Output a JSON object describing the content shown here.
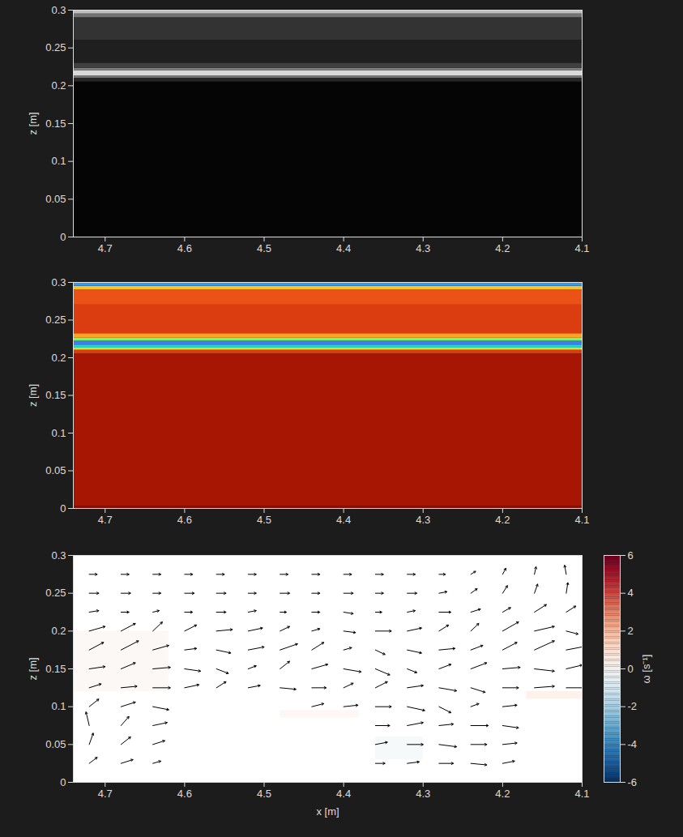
{
  "chart_data": [
    {
      "type": "heatmap",
      "color": "gray",
      "ylabel": "z [m]",
      "xlim": [
        4.74,
        4.1
      ],
      "xticks": [
        4.7,
        4.6,
        4.5,
        4.4,
        4.3,
        4.2,
        4.1
      ],
      "ylim": [
        0,
        0.3
      ],
      "yticks": [
        0,
        0.05,
        0.1,
        0.15,
        0.2,
        0.25,
        0.3
      ],
      "clim": [
        0,
        1
      ],
      "bands": [
        {
          "z": [
            0,
            0.205
          ],
          "value": 0.02
        },
        {
          "z": [
            0.205,
            0.21
          ],
          "value": 0.15
        },
        {
          "z": [
            0.21,
            0.213
          ],
          "value": 0.45
        },
        {
          "z": [
            0.213,
            0.22
          ],
          "value": 0.85
        },
        {
          "z": [
            0.22,
            0.223
          ],
          "value": 0.5
        },
        {
          "z": [
            0.223,
            0.23
          ],
          "value": 0.25
        },
        {
          "z": [
            0.23,
            0.26
          ],
          "value": 0.12
        },
        {
          "z": [
            0.26,
            0.29
          ],
          "value": 0.2
        },
        {
          "z": [
            0.29,
            0.295
          ],
          "value": 0.45
        },
        {
          "z": [
            0.295,
            0.3
          ],
          "value": 0.75
        }
      ]
    },
    {
      "type": "heatmap",
      "color": "jet",
      "ylabel": "z [m]",
      "xlim": [
        4.74,
        4.1
      ],
      "xticks": [
        4.7,
        4.6,
        4.5,
        4.4,
        4.3,
        4.2,
        4.1
      ],
      "ylim": [
        0,
        0.3
      ],
      "yticks": [
        0,
        0.05,
        0.1,
        0.15,
        0.2,
        0.25,
        0.3
      ],
      "clim": [
        0,
        1
      ],
      "bands": [
        {
          "z": [
            0,
            0.003
          ],
          "value": 0.97
        },
        {
          "z": [
            0.003,
            0.205
          ],
          "value": 0.93
        },
        {
          "z": [
            0.205,
            0.21
          ],
          "value": 0.85
        },
        {
          "z": [
            0.21,
            0.213
          ],
          "value": 0.6
        },
        {
          "z": [
            0.213,
            0.217
          ],
          "value": 0.3
        },
        {
          "z": [
            0.217,
            0.222
          ],
          "value": 0.15
        },
        {
          "z": [
            0.222,
            0.226
          ],
          "value": 0.45
        },
        {
          "z": [
            0.226,
            0.232
          ],
          "value": 0.7
        },
        {
          "z": [
            0.232,
            0.27
          ],
          "value": 0.85
        },
        {
          "z": [
            0.27,
            0.29
          ],
          "value": 0.82
        },
        {
          "z": [
            0.29,
            0.295
          ],
          "value": 0.65
        },
        {
          "z": [
            0.295,
            0.3
          ],
          "value": 0.2
        }
      ]
    },
    {
      "type": "quiver",
      "xlabel": "x [m]",
      "ylabel": "z [m]",
      "xlim": [
        4.74,
        4.1
      ],
      "xticks": [
        4.7,
        4.6,
        4.5,
        4.4,
        4.3,
        4.2,
        4.1
      ],
      "ylim": [
        0,
        0.3
      ],
      "yticks": [
        0,
        0.05,
        0.1,
        0.15,
        0.2,
        0.25,
        0.3
      ],
      "vectors": {
        "x": [
          4.72,
          4.68,
          4.64,
          4.6,
          4.56,
          4.52,
          4.48,
          4.44,
          4.4,
          4.36,
          4.32,
          4.28,
          4.24,
          4.2,
          4.16,
          4.12
        ],
        "z": [
          0.025,
          0.05,
          0.075,
          0.1,
          0.125,
          0.15,
          0.175,
          0.2,
          0.225,
          0.25,
          0.275
        ],
        "u": [
          [
            -0.01,
            -0.015,
            -0.01,
            null,
            null,
            null,
            null,
            null,
            null,
            -0.012,
            -0.015,
            -0.018,
            -0.02,
            -0.015,
            null,
            null
          ],
          [
            -0.005,
            -0.012,
            -0.015,
            null,
            null,
            null,
            null,
            null,
            null,
            -0.015,
            -0.02,
            -0.022,
            -0.02,
            -0.018,
            null,
            null
          ],
          [
            0.004,
            -0.01,
            -0.018,
            null,
            null,
            null,
            null,
            null,
            null,
            -0.018,
            -0.02,
            -0.018,
            -0.022,
            -0.02,
            null,
            null
          ],
          [
            -0.012,
            -0.018,
            -0.02,
            null,
            null,
            null,
            null,
            -0.015,
            -0.018,
            -0.02,
            -0.022,
            -0.015,
            -0.01,
            -0.018,
            null,
            null
          ],
          [
            -0.015,
            -0.02,
            -0.022,
            -0.018,
            -0.012,
            -0.015,
            -0.02,
            -0.018,
            -0.012,
            -0.015,
            -0.02,
            -0.022,
            -0.018,
            -0.02,
            -0.025,
            -0.028
          ],
          [
            -0.02,
            -0.018,
            -0.022,
            -0.02,
            -0.015,
            -0.01,
            -0.012,
            -0.02,
            -0.022,
            -0.018,
            -0.012,
            -0.015,
            -0.02,
            -0.022,
            -0.025,
            -0.02
          ],
          [
            -0.018,
            -0.022,
            -0.02,
            -0.015,
            -0.018,
            -0.02,
            -0.022,
            -0.015,
            -0.01,
            -0.012,
            -0.018,
            -0.02,
            -0.015,
            -0.018,
            -0.025,
            -0.03
          ],
          [
            -0.02,
            -0.018,
            -0.012,
            -0.015,
            -0.02,
            -0.018,
            -0.012,
            -0.01,
            -0.015,
            -0.02,
            -0.018,
            -0.012,
            -0.01,
            -0.02,
            -0.025,
            -0.015
          ],
          [
            -0.012,
            -0.01,
            -0.008,
            -0.01,
            -0.012,
            -0.01,
            -0.008,
            -0.01,
            -0.012,
            -0.008,
            -0.01,
            -0.015,
            -0.012,
            -0.01,
            -0.015,
            -0.012
          ],
          [
            -0.012,
            -0.012,
            -0.01,
            -0.012,
            -0.012,
            -0.01,
            -0.012,
            -0.01,
            -0.012,
            -0.01,
            -0.012,
            -0.01,
            -0.008,
            -0.006,
            -0.004,
            -0.002
          ],
          [
            -0.01,
            -0.01,
            -0.01,
            -0.01,
            -0.01,
            -0.01,
            -0.01,
            -0.01,
            -0.01,
            -0.01,
            -0.01,
            -0.008,
            -0.006,
            -0.004,
            -0.002,
            0.002
          ]
        ],
        "w": [
          [
            0.008,
            0.005,
            0.003,
            null,
            null,
            null,
            null,
            null,
            null,
            0,
            0.002,
            0,
            -0.002,
            0.003,
            null,
            null
          ],
          [
            0.015,
            0.01,
            0.005,
            null,
            null,
            null,
            null,
            null,
            null,
            0.003,
            0,
            -0.003,
            0,
            0.002,
            null,
            null
          ],
          [
            0.018,
            0.012,
            0.004,
            null,
            null,
            null,
            null,
            null,
            null,
            0,
            0.004,
            0.002,
            0,
            -0.003,
            null,
            null
          ],
          [
            0.01,
            0.006,
            -0.004,
            null,
            null,
            null,
            null,
            0.004,
            0.002,
            0,
            -0.005,
            -0.008,
            0.004,
            0.002,
            null,
            null
          ],
          [
            0.005,
            0.002,
            0,
            0.004,
            0.008,
            0.003,
            -0.002,
            0,
            0.006,
            0.008,
            0.003,
            -0.004,
            -0.006,
            0,
            0.002,
            0
          ],
          [
            0.003,
            0.008,
            0.002,
            -0.003,
            -0.006,
            0.004,
            0.01,
            0.006,
            -0.004,
            -0.008,
            -0.005,
            0.006,
            0.008,
            0.002,
            -0.003,
            0.005
          ],
          [
            0.01,
            0.012,
            0.006,
            0.002,
            -0.004,
            0.004,
            0.008,
            0.01,
            0.003,
            -0.006,
            -0.004,
            0.002,
            0.006,
            0.01,
            0.012,
            0.006
          ],
          [
            0.006,
            0.01,
            0.012,
            0.008,
            0.002,
            0.004,
            0.006,
            0.003,
            -0.002,
            0,
            0.004,
            0.008,
            0.01,
            0.012,
            0.006,
            -0.004
          ],
          [
            0.002,
            0,
            0.002,
            0,
            0,
            0.002,
            0,
            0,
            -0.002,
            0,
            0.002,
            0,
            0.004,
            0.006,
            0.01,
            0.008
          ],
          [
            0,
            0,
            0,
            0,
            0,
            0,
            0,
            0,
            0,
            0,
            0,
            0.002,
            0.006,
            0.01,
            0.012,
            0.014
          ],
          [
            0,
            0,
            0,
            0,
            0,
            0,
            0,
            0,
            0,
            0,
            0,
            0,
            0.004,
            0.008,
            0.01,
            0.012
          ]
        ]
      },
      "vorticity": [
        {
          "x": [
            4.17,
            4.1
          ],
          "z": [
            0.11,
            0.12
          ],
          "value": 1.2
        },
        {
          "x": [
            4.74,
            4.62
          ],
          "z": [
            0.12,
            0.2
          ],
          "value": 0.4
        },
        {
          "x": [
            4.36,
            4.3
          ],
          "z": [
            0.03,
            0.06
          ],
          "value": -0.6
        },
        {
          "x": [
            4.48,
            4.38
          ],
          "z": [
            0.085,
            0.095
          ],
          "value": 0.5
        }
      ],
      "colorbar": {
        "label": "ω [s⁻¹]",
        "lim": [
          -6,
          6
        ],
        "ticks": [
          -6,
          -4,
          -2,
          0,
          2,
          4,
          6
        ]
      }
    }
  ]
}
